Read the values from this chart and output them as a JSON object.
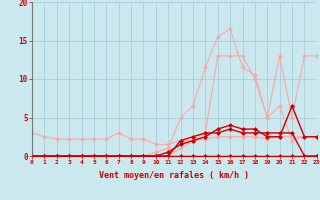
{
  "x": [
    0,
    1,
    2,
    3,
    4,
    5,
    6,
    7,
    8,
    9,
    10,
    11,
    12,
    13,
    14,
    15,
    16,
    17,
    18,
    19,
    20,
    21,
    22,
    23
  ],
  "line_pink1_y": [
    3,
    2.5,
    2.2,
    2.2,
    2.2,
    2.2,
    2.2,
    3,
    2.2,
    2.2,
    1.5,
    1.5,
    2,
    2,
    2.2,
    2.5,
    2.5,
    2.5,
    2.5,
    2.2,
    2.5,
    2.5,
    2.5,
    2.5
  ],
  "line_pink2_y": [
    0,
    0,
    0,
    0,
    0,
    0,
    0,
    0,
    0,
    0,
    0.5,
    1,
    5,
    6.5,
    11.5,
    15.5,
    16.5,
    11.5,
    10.5,
    5,
    6.5,
    2,
    2.5,
    2.5
  ],
  "line_pink3_y": [
    0,
    0,
    0,
    0,
    0,
    0,
    0,
    0,
    0,
    0,
    0,
    0,
    1,
    2,
    3,
    13,
    13,
    13,
    10,
    5,
    13,
    5,
    13,
    13
  ],
  "line_red1_y": [
    0,
    0,
    0,
    0,
    0,
    0,
    0,
    0,
    0,
    0,
    0,
    0,
    2,
    2.5,
    3,
    3,
    3.5,
    3,
    3,
    3,
    3,
    3,
    0,
    0
  ],
  "line_red2_y": [
    0,
    0,
    0,
    0,
    0,
    0,
    0,
    0,
    0,
    0,
    0,
    0.5,
    1.5,
    2,
    2.5,
    3.5,
    4,
    3.5,
    3.5,
    2.5,
    2.5,
    6.5,
    2.5,
    2.5
  ],
  "line_red3_y": [
    0,
    0,
    0,
    0,
    0,
    0,
    0,
    0,
    0,
    0,
    0,
    0,
    0,
    0,
    0,
    0,
    0,
    0,
    0,
    0,
    0,
    0,
    0,
    0
  ],
  "bg_color": "#cce8ef",
  "grid_color": "#aacfdb",
  "pink_color": "#f4aaaa",
  "red_color": "#cc0000",
  "xlabel": "Vent moyen/en rafales ( km/h )",
  "xlim": [
    0,
    23
  ],
  "ylim": [
    0,
    20
  ],
  "yticks": [
    0,
    5,
    10,
    15,
    20
  ],
  "xticks": [
    0,
    1,
    2,
    3,
    4,
    5,
    6,
    7,
    8,
    9,
    10,
    11,
    12,
    13,
    14,
    15,
    16,
    17,
    18,
    19,
    20,
    21,
    22,
    23
  ]
}
